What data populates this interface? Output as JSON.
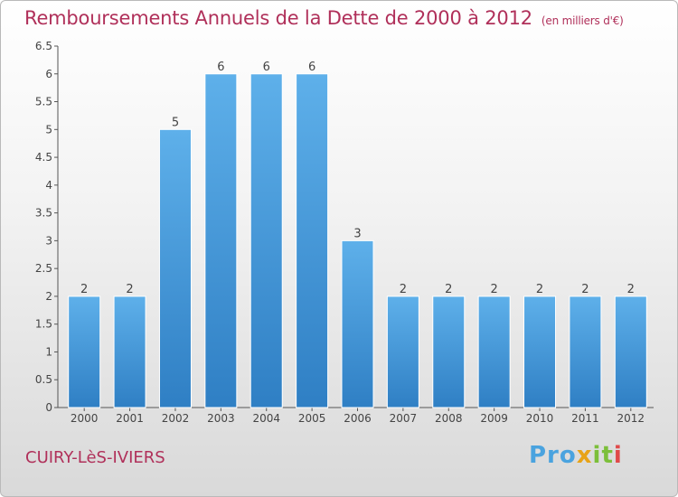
{
  "header": {
    "title": "Remboursements Annuels de la Dette de 2000 à 2012",
    "subtitle": "(en milliers d'€)"
  },
  "footer": {
    "commune": "CUIRY-LèS-IVIERS",
    "logo": [
      "Pro",
      "x",
      "it",
      "i"
    ]
  },
  "colors": {
    "title": "#b0305a",
    "bar_top": "#5eb0ea",
    "bar_bottom": "#2f7fc4"
  },
  "chart_data": {
    "type": "bar",
    "title": "Remboursements Annuels de la Dette de 2000 à 2012",
    "categories": [
      "2000",
      "2001",
      "2002",
      "2003",
      "2004",
      "2005",
      "2006",
      "2007",
      "2008",
      "2009",
      "2010",
      "2011",
      "2012"
    ],
    "values": [
      2,
      2,
      5,
      6,
      6,
      6,
      3,
      2,
      2,
      2,
      2,
      2,
      2
    ],
    "data_labels": [
      "2",
      "2",
      "5",
      "6",
      "6",
      "6",
      "3",
      "2",
      "2",
      "2",
      "2",
      "2",
      "2"
    ],
    "yticks": [
      "0",
      "0.5",
      "1",
      "1.5",
      "2",
      "2.5",
      "3",
      "3.5",
      "4",
      "4.5",
      "5",
      "5.5",
      "6",
      "6.5"
    ],
    "ylim": [
      0,
      6.5
    ],
    "grid": false
  }
}
